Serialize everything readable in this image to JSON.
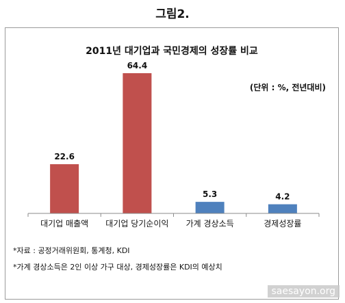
{
  "figure_label": "그림2.",
  "chart_data": {
    "type": "bar",
    "title": "2011년 대기업과 국민경제의 성장률 비교",
    "unit_note": "(단위 : %, 전년대비)",
    "categories": [
      "대기업 매출액",
      "대기업 당기순이익",
      "가계 경상소득",
      "경제성장률"
    ],
    "values": [
      22.6,
      64.4,
      5.3,
      4.2
    ],
    "data_labels": [
      "22.6",
      "64.4",
      "5.3",
      "4.2"
    ],
    "bar_colors": [
      "#c0504d",
      "#c0504d",
      "#4f81bd",
      "#4f81bd"
    ],
    "ylim": [
      0,
      70
    ],
    "grid": false,
    "legend": "none"
  },
  "notes": [
    "*자료 : 공정거래위원회, 통계청, KDI",
    "*가계 경상소득은 2인 이상 가구 대상, 경제성장률은 KDI의 예상치"
  ],
  "watermark": "saesayon.org"
}
